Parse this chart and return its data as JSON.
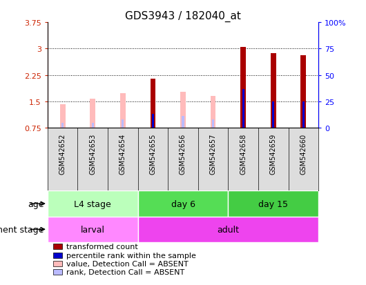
{
  "title": "GDS3943 / 182040_at",
  "samples": [
    "GSM542652",
    "GSM542653",
    "GSM542654",
    "GSM542655",
    "GSM542656",
    "GSM542657",
    "GSM542658",
    "GSM542659",
    "GSM542660"
  ],
  "ylim_left": [
    0.75,
    3.75
  ],
  "ylim_right": [
    0,
    100
  ],
  "yticks_left": [
    0.75,
    1.5,
    2.25,
    3.0,
    3.75
  ],
  "ytick_labels_left": [
    "0.75",
    "1.5",
    "2.25",
    "3",
    "3.75"
  ],
  "yticks_right": [
    0,
    25,
    50,
    75,
    100
  ],
  "ytick_labels_right": [
    "0",
    "25",
    "50",
    "75",
    "100%"
  ],
  "transformed_count": [
    null,
    null,
    null,
    2.15,
    null,
    null,
    3.05,
    2.87,
    2.82
  ],
  "percentile_rank": [
    null,
    null,
    null,
    13,
    null,
    null,
    37,
    25,
    25
  ],
  "absent_value": [
    1.43,
    1.58,
    1.73,
    null,
    1.77,
    1.65,
    null,
    null,
    null
  ],
  "absent_rank": [
    5,
    5,
    8,
    null,
    11,
    8,
    null,
    null,
    null
  ],
  "age_groups": [
    {
      "label": "L4 stage",
      "samples": [
        0,
        1,
        2
      ],
      "color": "#bbffbb"
    },
    {
      "label": "day 6",
      "samples": [
        3,
        4,
        5
      ],
      "color": "#55dd55"
    },
    {
      "label": "day 15",
      "samples": [
        6,
        7,
        8
      ],
      "color": "#44cc44"
    }
  ],
  "dev_groups": [
    {
      "label": "larval",
      "samples": [
        0,
        1,
        2
      ],
      "color": "#ff88ff"
    },
    {
      "label": "adult",
      "samples": [
        3,
        4,
        5,
        6,
        7,
        8
      ],
      "color": "#ee44ee"
    }
  ],
  "bar_width": 0.18,
  "rank_bar_width": 0.07,
  "color_transformed": "#aa0000",
  "color_percentile": "#0000cc",
  "color_absent_value": "#ffbbbb",
  "color_absent_rank": "#bbbbff",
  "legend_items": [
    {
      "color": "#aa0000",
      "label": "transformed count"
    },
    {
      "color": "#0000cc",
      "label": "percentile rank within the sample"
    },
    {
      "color": "#ffbbbb",
      "label": "value, Detection Call = ABSENT"
    },
    {
      "color": "#bbbbff",
      "label": "rank, Detection Call = ABSENT"
    }
  ],
  "age_label": "age",
  "dev_label": "development stage",
  "title_fontsize": 11,
  "tick_fontsize": 8,
  "label_fontsize": 9
}
